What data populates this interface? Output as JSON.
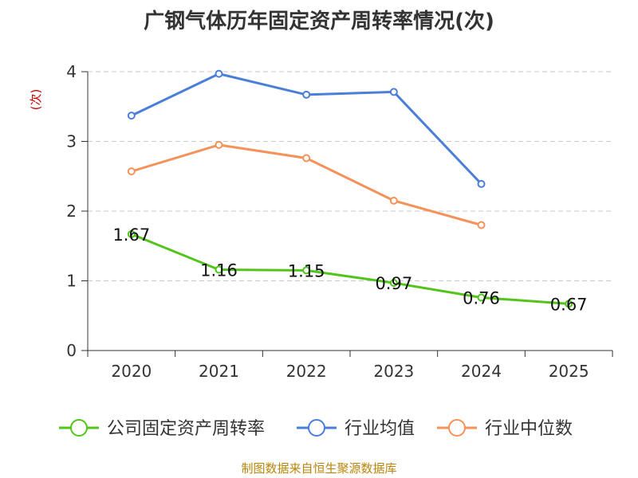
{
  "chart_data": {
    "type": "line",
    "title": "广钢气体历年固定资产周转率情况(次)",
    "ylabel": "(次)",
    "xlabel": "",
    "categories": [
      "2020",
      "2021",
      "2022",
      "2023",
      "2024",
      "2025"
    ],
    "ylim": [
      0,
      4
    ],
    "yticks": [
      0,
      1,
      2,
      3,
      4
    ],
    "grid": true,
    "legend_position": "bottom",
    "series": [
      {
        "name": "公司固定资产周转率",
        "color": "#52c41a",
        "values": [
          1.67,
          1.16,
          1.15,
          0.97,
          0.76,
          0.67
        ],
        "labels": [
          "1.67",
          "1.16",
          "1.15",
          "0.97",
          "0.76",
          "0.67"
        ]
      },
      {
        "name": "行业均值",
        "color": "#4a7fd9",
        "values": [
          3.37,
          3.97,
          3.67,
          3.71,
          2.39,
          null
        ]
      },
      {
        "name": "行业中位数",
        "color": "#f5925a",
        "values": [
          2.57,
          2.95,
          2.76,
          2.15,
          1.8,
          null
        ]
      }
    ]
  },
  "source": "制图数据来自恒生聚源数据库"
}
